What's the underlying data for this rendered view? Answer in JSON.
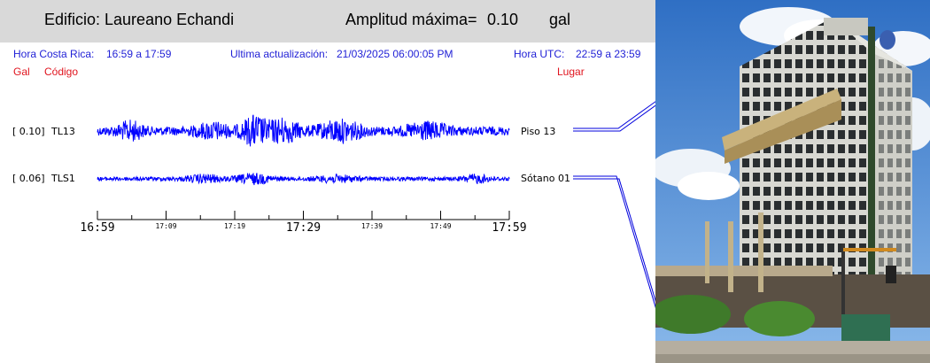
{
  "header": {
    "building_label": "Edificio: Laureano Echandi",
    "amplitude_label": "Amplitud máxima=",
    "amplitude_value": "0.10",
    "amplitude_unit": "gal"
  },
  "info": {
    "local_label": "Hora Costa Rica:",
    "local_range": "16:59 a 17:59",
    "update_label": "Ultima actualización:",
    "update_value": "21/03/2025 06:00:05 PM",
    "utc_label": "Hora UTC:",
    "utc_range": "22:59 a 23:59"
  },
  "columns": {
    "gal": "Gal",
    "codigo": "Código",
    "lugar": "Lugar"
  },
  "channels": [
    {
      "gal": "[  0.10]",
      "code": "TL13",
      "place": "Piso 13",
      "amplitude": 0.1
    },
    {
      "gal": "[  0.06]",
      "code": "TLS1",
      "place": "Sótano 01",
      "amplitude": 0.06
    }
  ],
  "time_axis": {
    "start": "16:59",
    "end": "17:59",
    "labels": [
      "16:59",
      "17:09",
      "17:19",
      "17:29",
      "17:39",
      "17:49",
      "17:59"
    ]
  },
  "colors": {
    "header_bg": "#d9d9d9",
    "trace": "#0000ff",
    "info_text": "#1f1fd6",
    "column_text": "#e0141e"
  },
  "photo": {
    "icon": "building-photo"
  }
}
